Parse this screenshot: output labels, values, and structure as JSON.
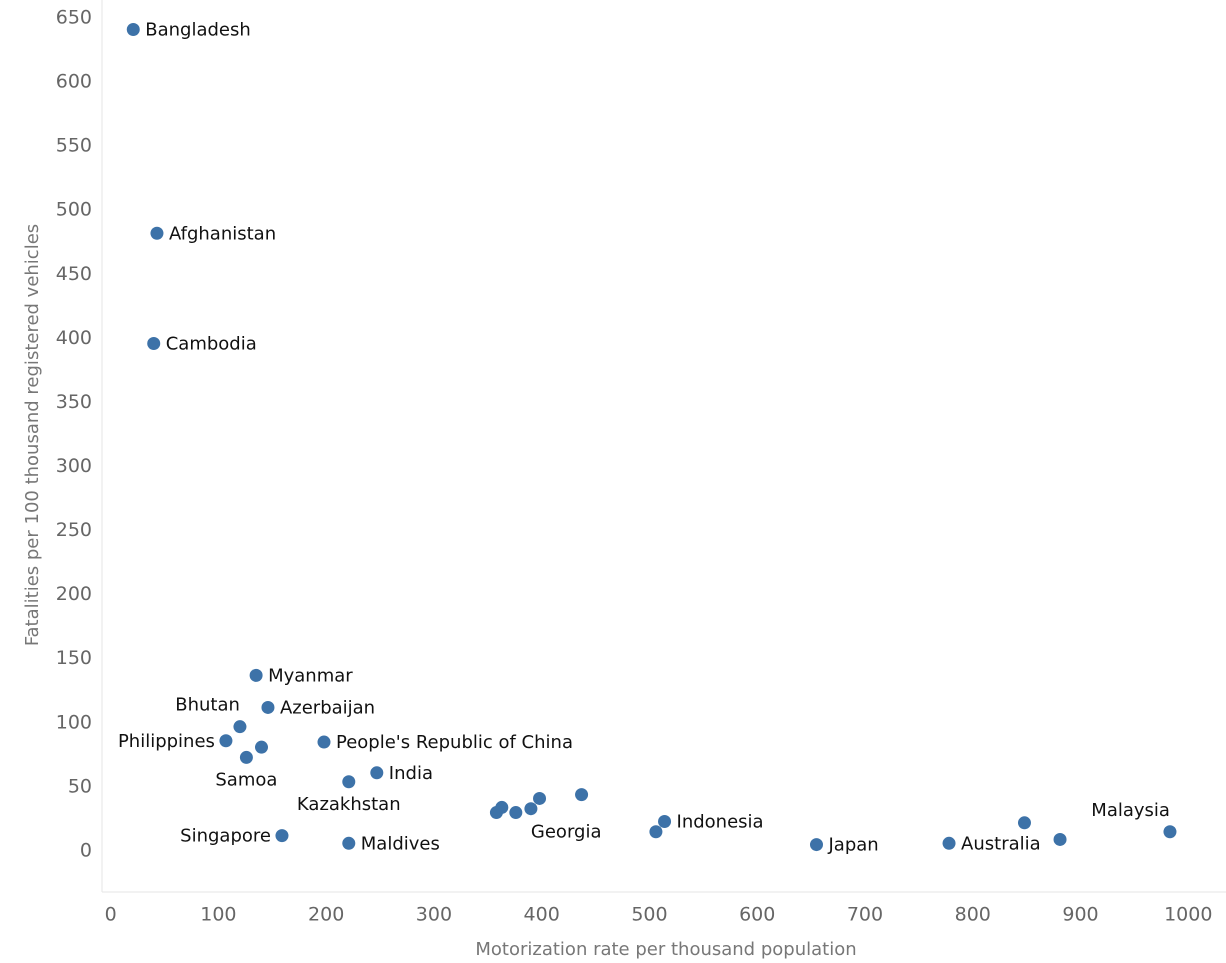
{
  "chart_data": {
    "type": "scatter",
    "x_label": "Motorization rate per thousand population",
    "y_label": "Fatalities per 100 thousand registered vehicles",
    "color": "#3d72a8",
    "labels": [
      "Bangladesh",
      "Afghanistan",
      "Cambodia",
      "Myanmar",
      "Azerbaijan",
      "Bhutan",
      "Philippines",
      null,
      "Samoa",
      "People's Republic of China",
      "India",
      "Kazakhstan",
      "Singapore",
      "Maldives",
      null,
      null,
      null,
      "Georgia",
      null,
      null,
      "Indonesia",
      null,
      "Japan",
      "Australia",
      null,
      null,
      "Malaysia"
    ],
    "x": [
      21,
      43,
      40,
      135,
      146,
      120,
      107,
      140,
      126,
      198,
      247,
      221,
      159,
      221,
      358,
      363,
      376,
      390,
      398,
      437,
      514,
      506,
      655,
      778,
      848,
      881,
      983
    ],
    "y": [
      641,
      482,
      396,
      137,
      112,
      97,
      86,
      81,
      73,
      85,
      61,
      54,
      12,
      6,
      30,
      34,
      30,
      33,
      41,
      44,
      23,
      15,
      5,
      6,
      22,
      9,
      15
    ],
    "xlim": [
      -8,
      1035
    ],
    "xticks": [
      0,
      100,
      200,
      300,
      400,
      500,
      600,
      700,
      800,
      900,
      1000
    ],
    "ylim": [
      -32,
      664
    ],
    "yticks": [
      0,
      50,
      100,
      150,
      200,
      250,
      300,
      350,
      400,
      450,
      500,
      550,
      600,
      650
    ],
    "grid": false
  }
}
